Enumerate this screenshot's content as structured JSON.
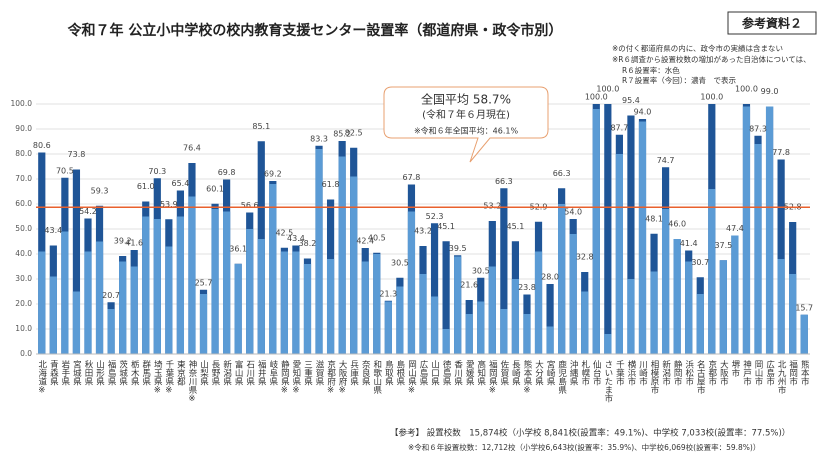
{
  "chart_data": {
    "type": "bar",
    "title": "令和７年 公立小中学校の校内教育支援センター設置率（都道府県・政令市別）",
    "badge": "参考資料２",
    "notes": [
      "※の付く都道府県の内に、政令市の実績は含まない",
      "※R６調査から設置校数の増加があった自治体については、",
      "R６設置率：水色",
      "R７設置率（今回）：濃青　で表示"
    ],
    "footer": [
      "【参考】 設置校数　15,874校（小学校 8,841校(設置率：49.1%)、中学校 7,033校(設置率：77.5%)）",
      "※令和６年設置校数：12,712校（小学校6,643校(設置率：35.9%)、中学校6,069校(設置率：59.8%)）"
    ],
    "reference_line": {
      "value": 58.7,
      "label": "全国平均 58.7%",
      "sublabel": "(令和７年６月現在)",
      "note": "※令和６年全国平均：46.1%",
      "color": "#e8602c"
    },
    "categories": [
      "北海道※",
      "青森県",
      "岩手県",
      "宮城県",
      "秋田県",
      "山形県",
      "福島県",
      "茨城県",
      "栃木県",
      "群馬県",
      "埼玉県※",
      "千葉県※",
      "東京都",
      "神奈川県※",
      "山梨県",
      "長野県",
      "新潟県",
      "富山県",
      "石川県",
      "福井県",
      "岐阜県",
      "静岡県※",
      "愛知県※",
      "三重県",
      "滋賀県",
      "京都府※",
      "大阪府※",
      "兵庫県",
      "奈良県",
      "和歌山県",
      "鳥取県",
      "島根県",
      "岡山県※",
      "広島県",
      "山口県",
      "徳島県",
      "香川県",
      "愛媛県",
      "高知県",
      "福岡県※",
      "佐賀県",
      "長崎県",
      "熊本県※",
      "大分県",
      "宮崎県",
      "鹿児島県",
      "沖縄県",
      "札幌市",
      "仙台市",
      "さいたま市",
      "千葉市",
      "横浜市",
      "川崎市",
      "相模原市",
      "新潟市",
      "静岡市",
      "浜松市",
      "名古屋市",
      "京都市",
      "大阪市",
      "堺市",
      "神戸市",
      "岡山市",
      "広島市",
      "北九州市",
      "福岡市",
      "熊本市"
    ],
    "series": [
      {
        "name": "R７設置率（今回）",
        "color": "#1f5597",
        "values": [
          80.6,
          43.4,
          70.5,
          73.8,
          54.2,
          59.3,
          20.7,
          39.2,
          41.6,
          61.0,
          70.3,
          53.9,
          65.4,
          76.4,
          25.7,
          60.1,
          69.8,
          36.1,
          56.6,
          85.1,
          69.2,
          42.5,
          43.4,
          38.2,
          83.3,
          61.8,
          85.2,
          82.5,
          42.4,
          40.5,
          21.3,
          30.5,
          67.8,
          43.2,
          52.3,
          45.1,
          39.5,
          21.6,
          30.5,
          53.2,
          66.3,
          45.1,
          23.8,
          52.9,
          28.0,
          66.3,
          54.0,
          32.8,
          100.0,
          100.0,
          87.7,
          95.4,
          94.0,
          48.1,
          74.7,
          46.0,
          41.4,
          30.7,
          100.0,
          37.5,
          47.4,
          100.0,
          87.3,
          99.0,
          77.8,
          52.8,
          15.7
        ],
        "value_labels": [
          "80.6",
          "43.4",
          "70.5",
          "73.8",
          "54.2",
          "59.3",
          "20.7",
          "39.2",
          "41.6",
          "61.0",
          "70.3",
          "53.9",
          "65.4",
          "76.4",
          "25.7",
          "60.1",
          "69.8",
          "36.1",
          "56.6",
          "85.1",
          "69.2",
          "42.5",
          "43.4",
          "38.2",
          "83.3",
          "61.8",
          "85.2",
          "82.5",
          "42.4",
          "40.5",
          "21.3",
          "30.5",
          "67.8",
          "43.2",
          "52.3",
          "45.1",
          "39.5",
          "21.6",
          "30.5",
          "53.2",
          "66.3",
          "45.1",
          "23.8",
          "52.9",
          "28.0",
          "66.3",
          "54.0",
          "32.8",
          "100.0",
          "100.0",
          "87.7",
          "95.4",
          "94.0",
          "48.1",
          "74.7",
          "46.0",
          "41.4",
          "30.7",
          "100.0",
          "37.5",
          "47.4",
          "100.0",
          "87.3",
          "99.0",
          "77.8",
          "52.8",
          "15.7"
        ]
      },
      {
        "name": "R６設置率",
        "color": "#5b9bd5",
        "values": [
          41,
          31,
          49,
          25,
          41,
          45,
          18,
          37,
          35,
          55,
          54,
          43,
          55,
          63,
          24,
          58,
          57,
          36,
          50,
          46,
          68,
          41,
          41,
          36,
          82,
          38,
          79,
          71,
          37,
          40,
          21,
          27,
          57,
          32,
          23,
          10,
          39,
          16,
          21,
          35,
          18,
          30,
          16,
          41,
          11,
          60,
          48,
          25,
          98,
          8,
          80,
          30,
          93,
          33,
          58,
          46,
          37,
          24,
          66,
          37.5,
          47.4,
          99,
          84,
          99,
          38,
          32,
          15.7
        ]
      }
    ],
    "ylim": [
      0,
      100
    ],
    "yticks": [
      {
        "value": 0,
        "label": "0.0"
      },
      {
        "value": 10,
        "label": "10.0"
      },
      {
        "value": 20,
        "label": "20.0"
      },
      {
        "value": 30,
        "label": "30.0"
      },
      {
        "value": 40,
        "label": "40.0"
      },
      {
        "value": 50,
        "label": "50.0"
      },
      {
        "value": 60,
        "label": "60.0"
      },
      {
        "value": 70,
        "label": "70.0"
      },
      {
        "value": 80,
        "label": "80.0"
      },
      {
        "value": 90,
        "label": "90.0"
      },
      {
        "value": 100,
        "label": "100.0"
      }
    ],
    "grid": true
  }
}
